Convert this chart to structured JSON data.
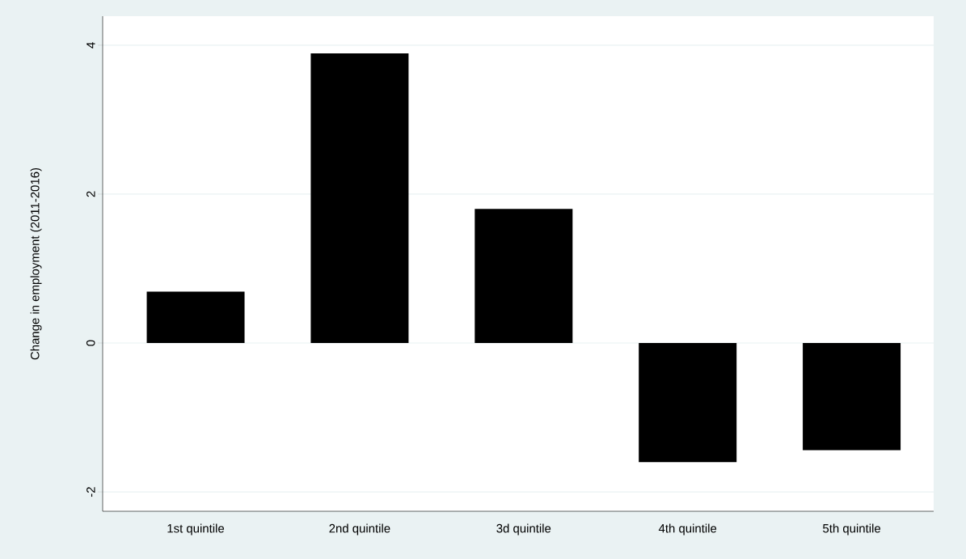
{
  "chart_data": {
    "type": "bar",
    "ylabel": "Change in employment (2011-2016)",
    "categories": [
      "1st quintile",
      "2nd quintile",
      "3d quintile",
      "4th quintile",
      "5th quintile"
    ],
    "values": [
      0.69,
      3.89,
      1.8,
      -1.6,
      -1.44
    ],
    "color": "#000000",
    "ylim": [
      -2.26,
      4.39
    ],
    "yticks": [
      -2,
      0,
      2,
      4
    ],
    "grid": "y"
  }
}
